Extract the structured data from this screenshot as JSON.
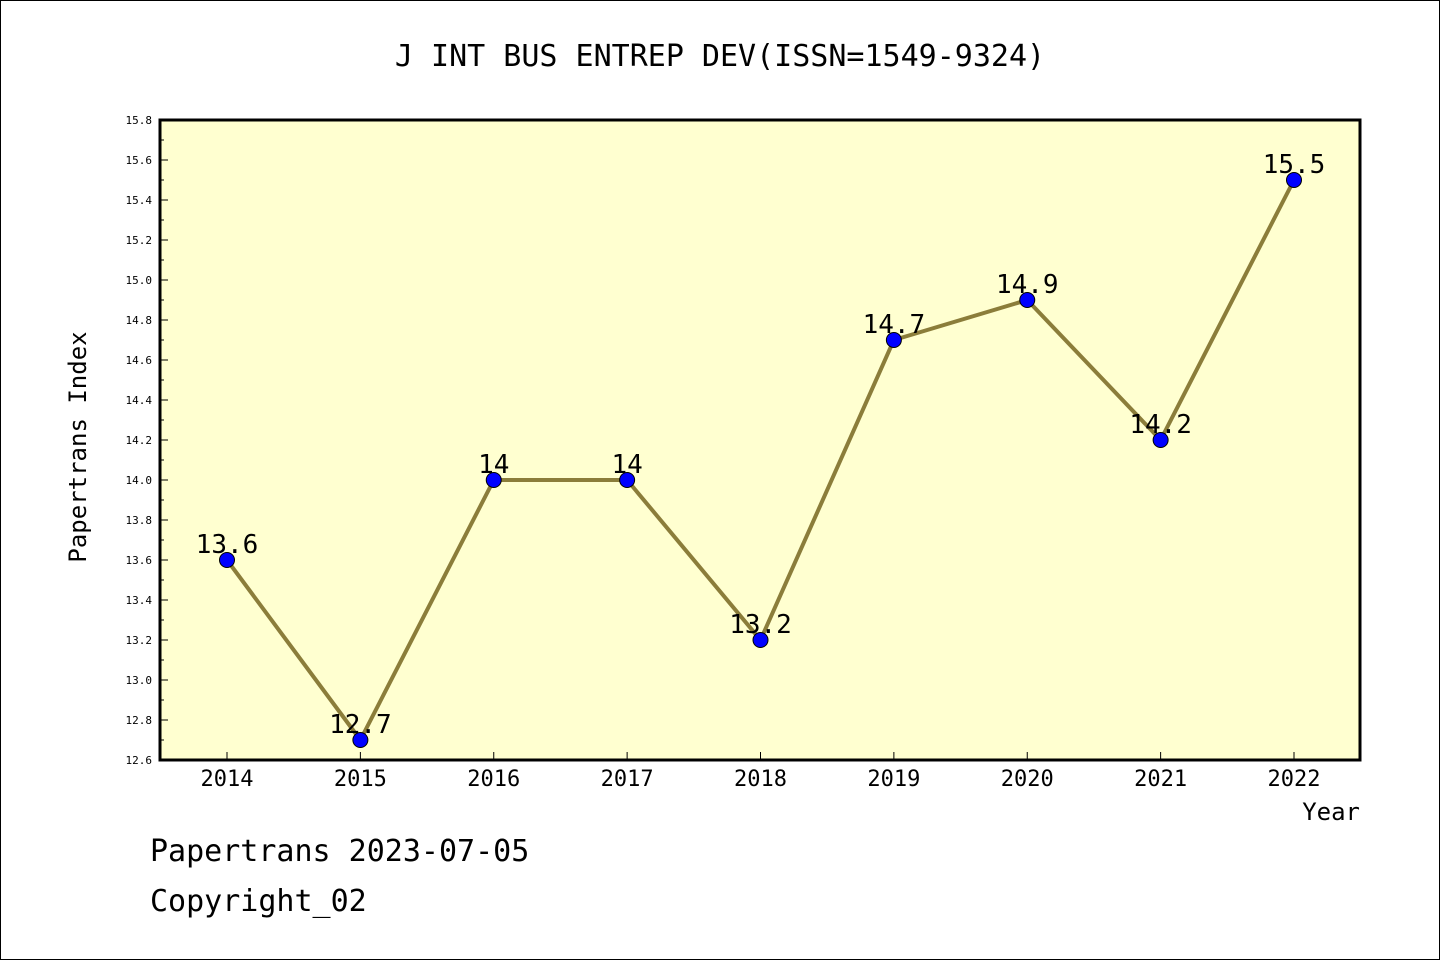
{
  "chart_data": {
    "type": "line",
    "title": "J INT BUS ENTREP DEV(ISSN=1549-9324)",
    "xlabel": "Year",
    "ylabel": "Papertrans Index",
    "categories": [
      "2014",
      "2015",
      "2016",
      "2017",
      "2018",
      "2019",
      "2020",
      "2021",
      "2022"
    ],
    "series": [
      {
        "values": [
          13.6,
          12.7,
          14,
          14,
          13.2,
          14.7,
          14.9,
          14.2,
          15.5
        ],
        "data_labels": [
          "13.6",
          "12.7",
          "14",
          "14",
          "13.2",
          "14.7",
          "14.9",
          "14.2",
          "15.5"
        ]
      }
    ],
    "ylim": [
      12.6,
      15.8
    ],
    "yticks": [
      "12.6",
      "12.8",
      "13.0",
      "13.2",
      "13.4",
      "13.6",
      "13.8",
      "14.0",
      "14.2",
      "14.4",
      "14.6",
      "14.8",
      "15.0",
      "15.2",
      "15.4",
      "15.6",
      "15.8"
    ],
    "grid": false,
    "colors": {
      "plot_background": "#ffffd0",
      "line": "#8b7d3a",
      "marker": "#0000ff"
    }
  },
  "footer": {
    "date_line": "Papertrans 2023-07-05",
    "copyright": "Copyright_02"
  }
}
